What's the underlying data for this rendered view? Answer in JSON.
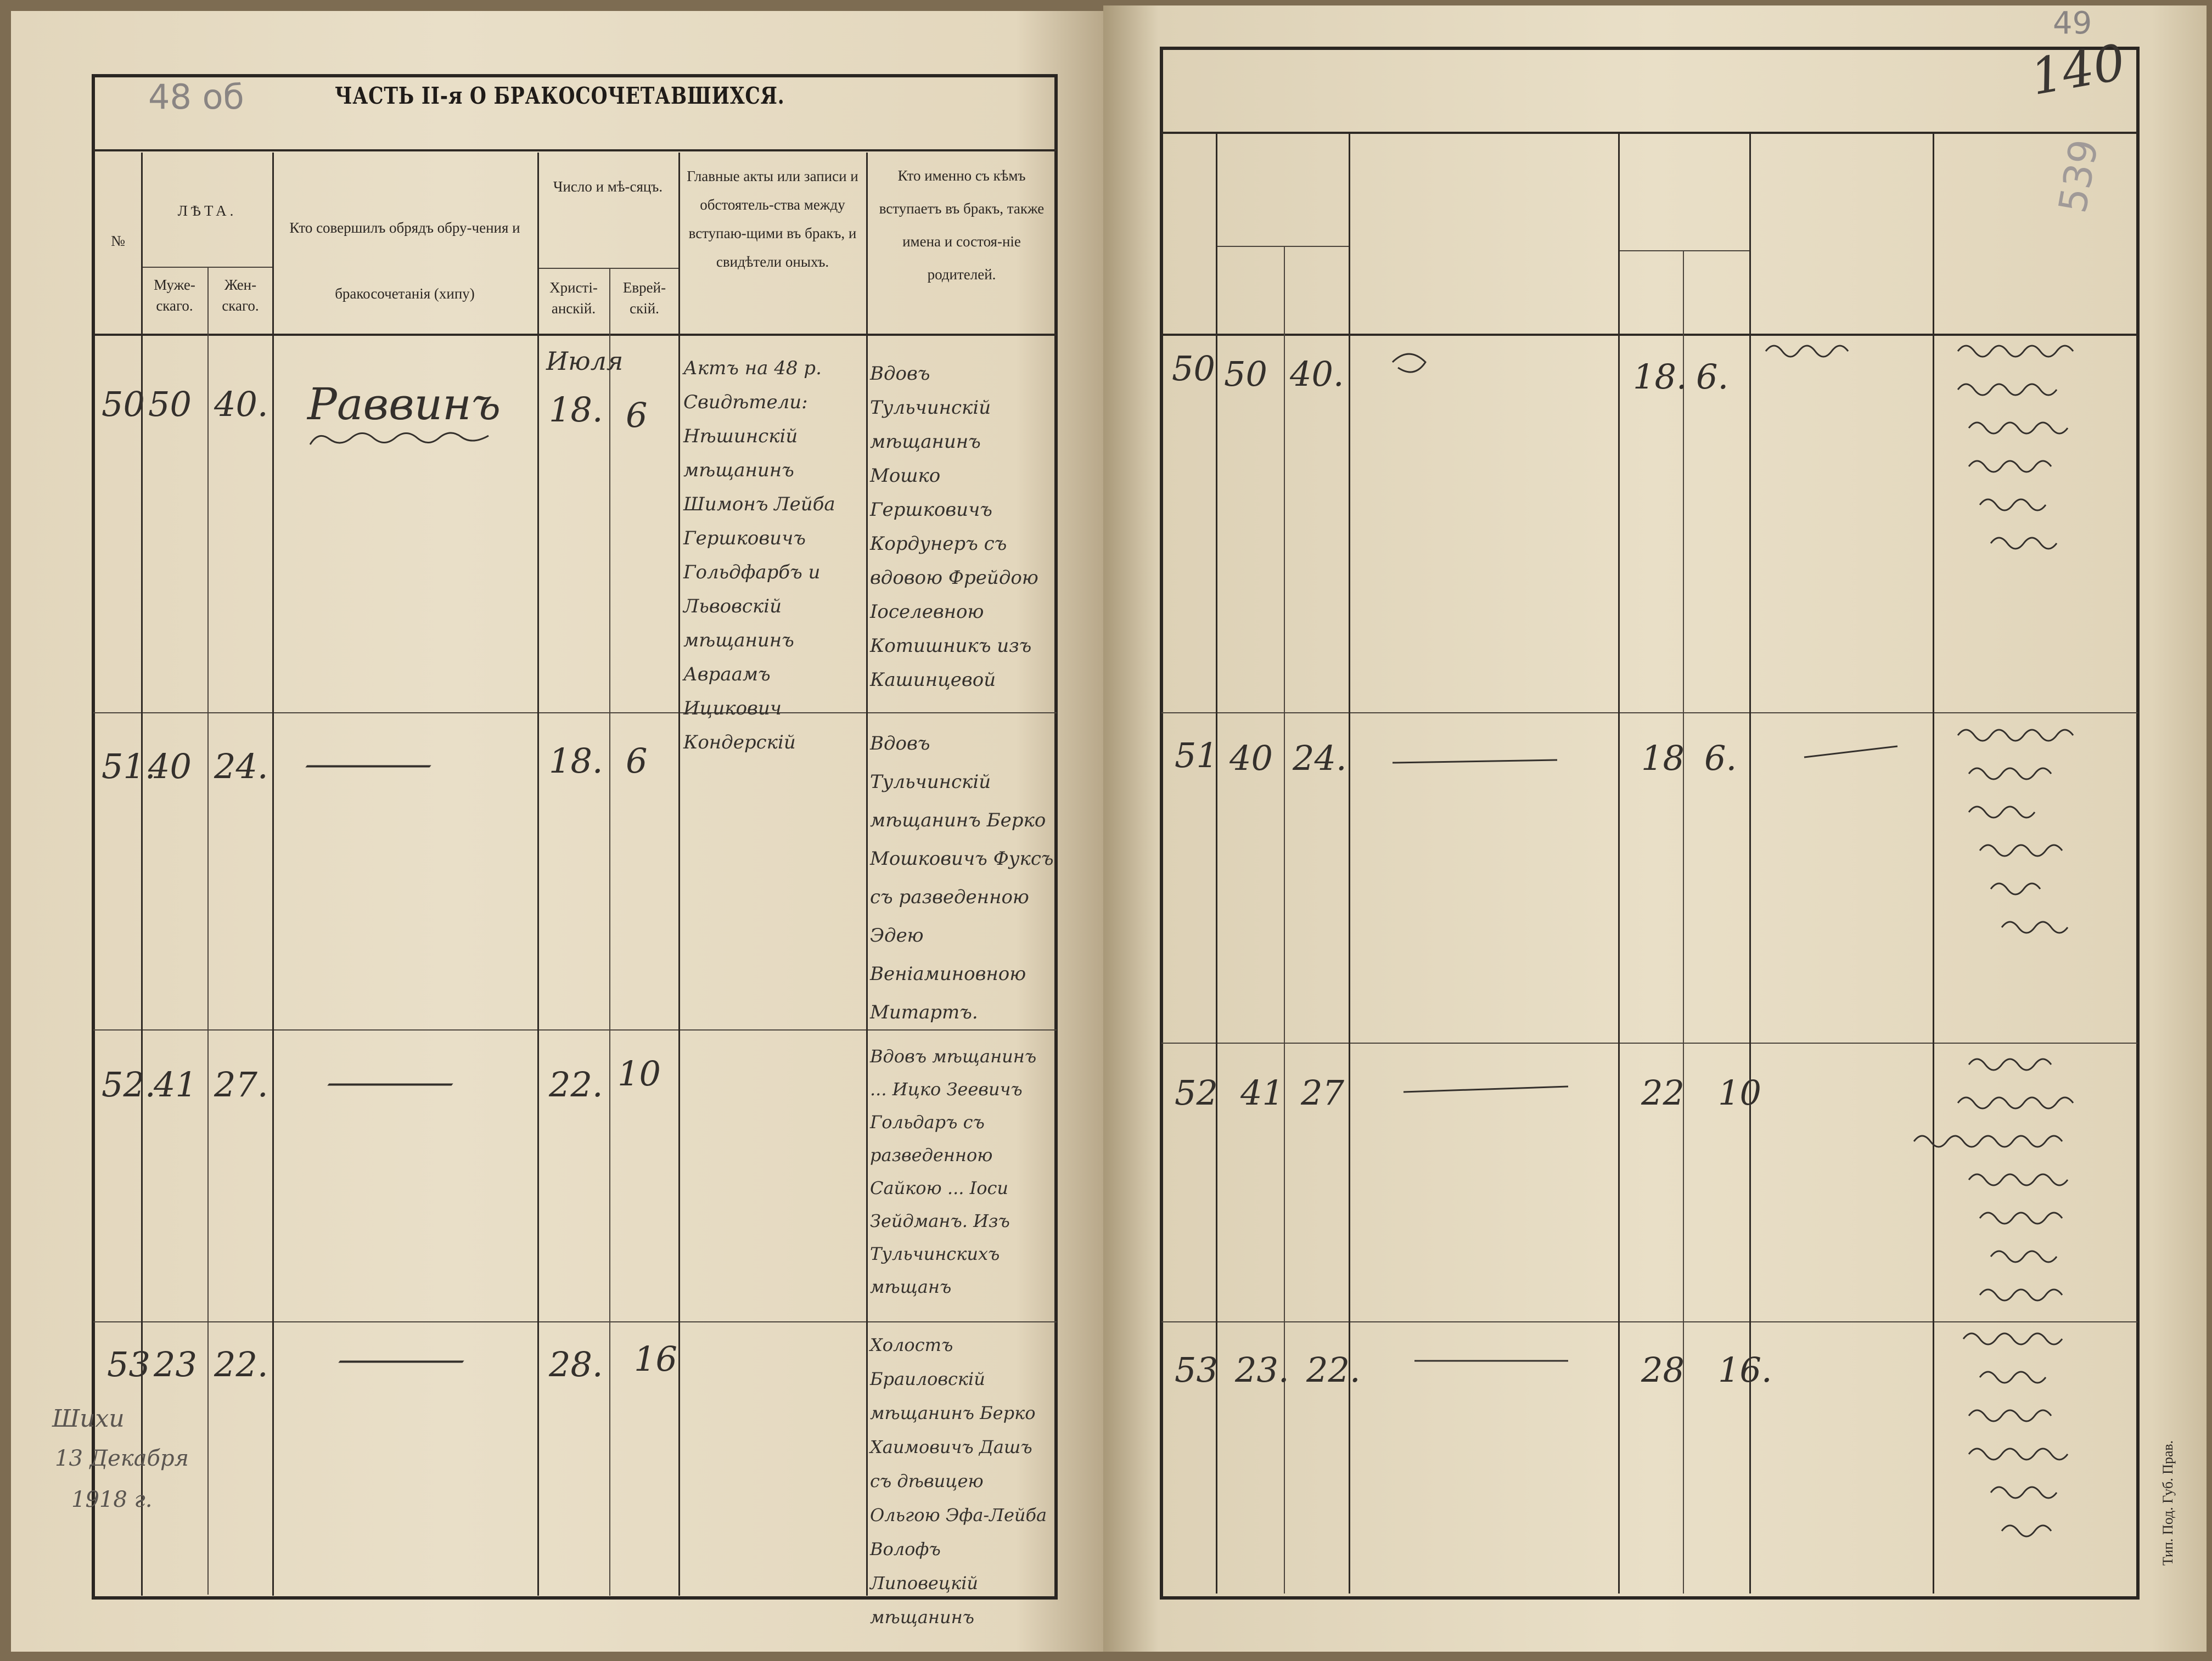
{
  "left_page": {
    "folio_note": "48 об",
    "title": "ЧАСТЬ II-я О БРАКОСОЧЕТАВШИХСЯ.",
    "headers": {
      "number": "№",
      "ages": "ЛѢТА.",
      "male": "Муже-скаго.",
      "female": "Жен-скаго.",
      "officiant": "Кто совершилъ обрядъ обру-чения и бракосочетанія (хипу)",
      "date": "Число и мѣ-сяцъ.",
      "christian": "Христі-анскій.",
      "jewish": "Еврей-скій.",
      "acts": "Главные акты или записи и обстоятель-ства между вступаю-щими въ бракъ, и свидѣтели оныхъ.",
      "who": "Кто именно съ кѣмъ вступаетъ въ бракъ, также имена и состоя-ніе родителей."
    },
    "rows": [
      {
        "number": "50",
        "male_age": "50",
        "female_age": "40.",
        "officiant": "Раввинъ",
        "month": "Июля",
        "christian_day": "18.",
        "jewish_day": "6",
        "acts": "Актъ на 48 р. Свидѣтели: Нѣшинскій мѣщанинъ Шимонъ Лейба Гершковичъ Гольдфарбъ и Львовскій мѣщанинъ Авраамъ Ицикович Кондерскій",
        "who": "Вдовъ Тульчинскій мѣщанинъ Мошко Гершковичъ Кордунеръ съ вдовою Фрейдою Іоселевною Котишникъ изъ Кашинцевой"
      },
      {
        "number": "51.",
        "male_age": "40",
        "female_age": "24.",
        "officiant": "—",
        "month": "",
        "christian_day": "18.",
        "jewish_day": "6",
        "acts": "",
        "who": "Вдовъ Тульчинскій мѣщанинъ Берко Мошковичъ Фуксъ съ разведенною Эдею Веніаминовною Митартъ."
      },
      {
        "number": "52.",
        "male_age": "41",
        "female_age": "27.",
        "officiant": "—",
        "month": "",
        "christian_day": "22.",
        "jewish_day": "10",
        "acts": "",
        "who": "Вдовъ мѣщанинъ ... Ицко Зеевичъ Гольдаръ съ разведенною Сайкою ... Іоси Зейдманъ. Изъ Тульчинскихъ мѣщанъ"
      },
      {
        "number": "53",
        "male_age": "23",
        "female_age": "22.",
        "officiant": "—",
        "month": "",
        "christian_day": "28.",
        "jewish_day": "16",
        "acts": "",
        "who": "Холостъ Браиловскій мѣщанинъ Берко Хаимовичъ Дашъ съ дѣвицею Ольгою Эфа-Лейба Волофъ Липовецкій мѣщанинъ"
      }
    ],
    "margin_note": [
      "Шихи",
      "13 Декабря",
      "1918 г."
    ]
  },
  "right_page": {
    "folio_number": "49",
    "folio_ink": "140",
    "pencil_number": "539",
    "rows": [
      {
        "number": "50",
        "male_age": "50",
        "female_age": "40.",
        "christian_day": "18.",
        "jewish_day": "6."
      },
      {
        "number": "51",
        "male_age": "40",
        "female_age": "24.",
        "christian_day": "18",
        "jewish_day": "6."
      },
      {
        "number": "52",
        "male_age": "41",
        "female_age": "27",
        "christian_day": "22",
        "jewish_day": "10"
      },
      {
        "number": "53",
        "male_age": "23.",
        "female_age": "22.",
        "christian_day": "28",
        "jewish_day": "16."
      }
    ],
    "printer_imprint": "Тип. Под. Губ. Прав."
  },
  "colors": {
    "paper": "#e7dcc4",
    "ink": "#34302c",
    "rule": "#2f2a25",
    "pencil": "#8a8583"
  }
}
